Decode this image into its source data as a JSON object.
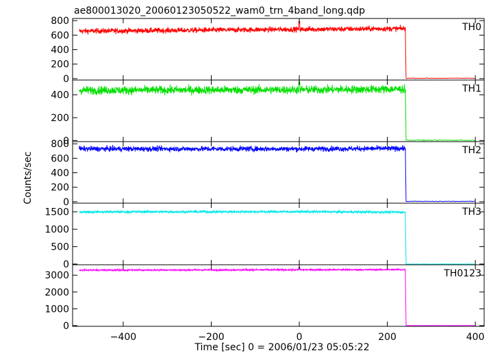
{
  "chart_data": {
    "type": "line",
    "title": "ae800013020_20060123050522_wam0_trn_4band_long.qdp",
    "xlabel": "Time [sec] 0 = 2006/01/23 05:05:22",
    "ylabel": "Counts/sec",
    "xlim": [
      -515,
      420
    ],
    "xticks": [
      -400,
      -200,
      0,
      200,
      400
    ],
    "x_tick_labels": [
      "−400",
      "−200",
      "0",
      "200",
      "400"
    ],
    "grid": false,
    "drop_time": 242,
    "panels": [
      {
        "name": "TH0",
        "color": "#ff0000",
        "ylim": [
          -20,
          830
        ],
        "yticks": [
          0,
          200,
          400,
          600,
          800
        ],
        "y_tick_labels": [
          "0",
          "200",
          "400",
          "600",
          "800"
        ],
        "series": [
          {
            "x": [
              -500,
              0,
              241,
              242,
              400
            ],
            "y": [
              655,
              680,
              690,
              230,
              5
            ]
          }
        ],
        "noise": 40,
        "spike": {
          "x": 0,
          "y": 790
        },
        "level_after": 5
      },
      {
        "name": "TH1",
        "color": "#00e000",
        "ylim": [
          -10,
          530
        ],
        "yticks": [
          0,
          200,
          400
        ],
        "y_tick_labels": [
          "0",
          "200",
          "400"
        ],
        "series": [
          {
            "x": [
              -500,
              0,
              241,
              242,
              400
            ],
            "y": [
              440,
              445,
              450,
              180,
              2
            ]
          }
        ],
        "noise": 40,
        "spike": {
          "x": 0,
          "y": 515
        },
        "level_after": 2
      },
      {
        "name": "TH2",
        "color": "#0000ff",
        "ylim": [
          -20,
          830
        ],
        "yticks": [
          0,
          200,
          400,
          600,
          800
        ],
        "y_tick_labels": [
          "0",
          "200",
          "400",
          "600",
          "800"
        ],
        "series": [
          {
            "x": [
              -500,
              0,
              241,
              242,
              400
            ],
            "y": [
              730,
              730,
              735,
              260,
              5
            ]
          }
        ],
        "noise": 40,
        "spike": null,
        "level_after": 5
      },
      {
        "name": "TH3",
        "color": "#00e8e8",
        "ylim": [
          -20,
          1750
        ],
        "yticks": [
          0,
          500,
          1000,
          1500
        ],
        "y_tick_labels": [
          "0",
          "500",
          "1000",
          "1500"
        ],
        "series": [
          {
            "x": [
              -500,
              0,
              241,
              242,
              400
            ],
            "y": [
              1500,
              1505,
              1490,
              520,
              0
            ]
          }
        ],
        "noise": 40,
        "spike": null,
        "level_after": 0
      },
      {
        "name": "TH0123",
        "color": "#ff00ff",
        "ylim": [
          -40,
          3620
        ],
        "yticks": [
          0,
          1000,
          2000,
          3000
        ],
        "y_tick_labels": [
          "0",
          "1000",
          "2000",
          "3000"
        ],
        "series": [
          {
            "x": [
              -500,
              0,
              241,
              242,
              400
            ],
            "y": [
              3300,
              3320,
              3330,
              1100,
              8
            ]
          }
        ],
        "noise": 55,
        "spike": {
          "x": 0,
          "y": 3480
        },
        "level_after": 8
      }
    ]
  }
}
